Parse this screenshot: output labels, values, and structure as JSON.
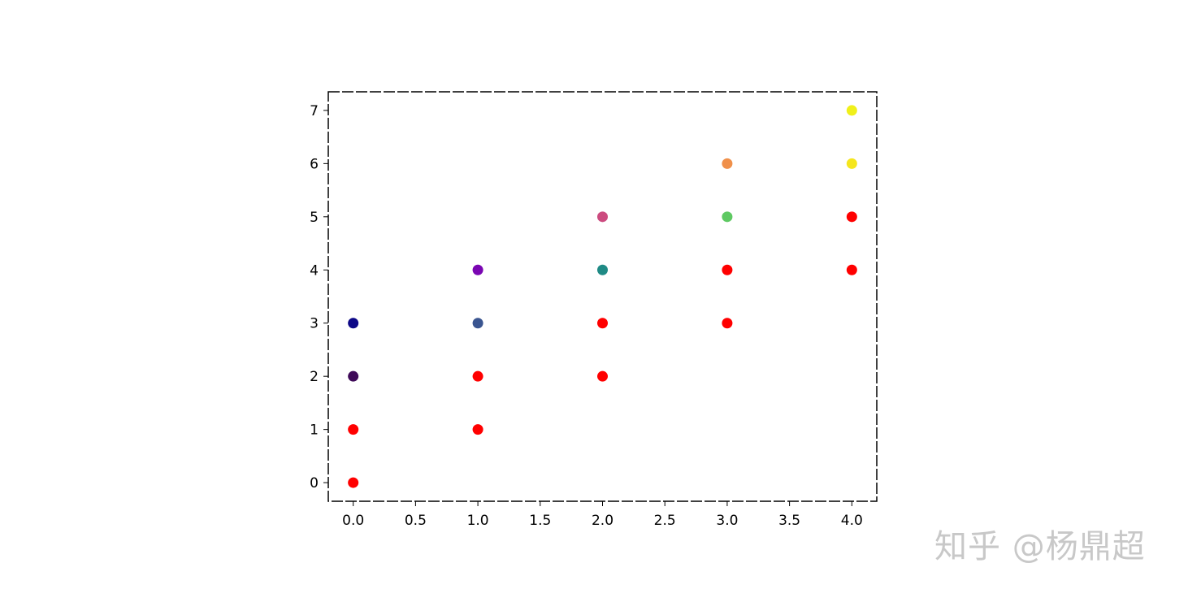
{
  "chart_data": {
    "type": "scatter",
    "title": "",
    "xlabel": "",
    "ylabel": "",
    "xlim": [
      -0.2,
      4.2
    ],
    "ylim": [
      -0.35,
      7.35
    ],
    "xticks": [
      "0.0",
      "0.5",
      "1.0",
      "1.5",
      "2.0",
      "2.5",
      "3.0",
      "3.5",
      "4.0"
    ],
    "yticks": [
      "0",
      "1",
      "2",
      "3",
      "4",
      "5",
      "6",
      "7"
    ],
    "grid": false,
    "legend": "none",
    "points": [
      {
        "x": 0,
        "y": 0,
        "color": "#ff0000"
      },
      {
        "x": 0,
        "y": 1,
        "color": "#ff0000"
      },
      {
        "x": 0,
        "y": 2,
        "color": "#3f0a59"
      },
      {
        "x": 0,
        "y": 3,
        "color": "#0d0887"
      },
      {
        "x": 1,
        "y": 1,
        "color": "#ff0000"
      },
      {
        "x": 1,
        "y": 2,
        "color": "#ff0000"
      },
      {
        "x": 1,
        "y": 3,
        "color": "#3a5590"
      },
      {
        "x": 1,
        "y": 4,
        "color": "#7a06b2"
      },
      {
        "x": 2,
        "y": 2,
        "color": "#ff0000"
      },
      {
        "x": 2,
        "y": 3,
        "color": "#ff0000"
      },
      {
        "x": 2,
        "y": 4,
        "color": "#1f8a85"
      },
      {
        "x": 2,
        "y": 5,
        "color": "#cc4b7f"
      },
      {
        "x": 3,
        "y": 3,
        "color": "#ff0000"
      },
      {
        "x": 3,
        "y": 4,
        "color": "#ff0000"
      },
      {
        "x": 3,
        "y": 5,
        "color": "#5ec962"
      },
      {
        "x": 3,
        "y": 6,
        "color": "#f0904a"
      },
      {
        "x": 4,
        "y": 4,
        "color": "#ff0000"
      },
      {
        "x": 4,
        "y": 5,
        "color": "#ff0000"
      },
      {
        "x": 4,
        "y": 6,
        "color": "#f5e61d"
      },
      {
        "x": 4,
        "y": 7,
        "color": "#f0f01a"
      }
    ]
  },
  "watermark": "知乎 @杨鼎超"
}
